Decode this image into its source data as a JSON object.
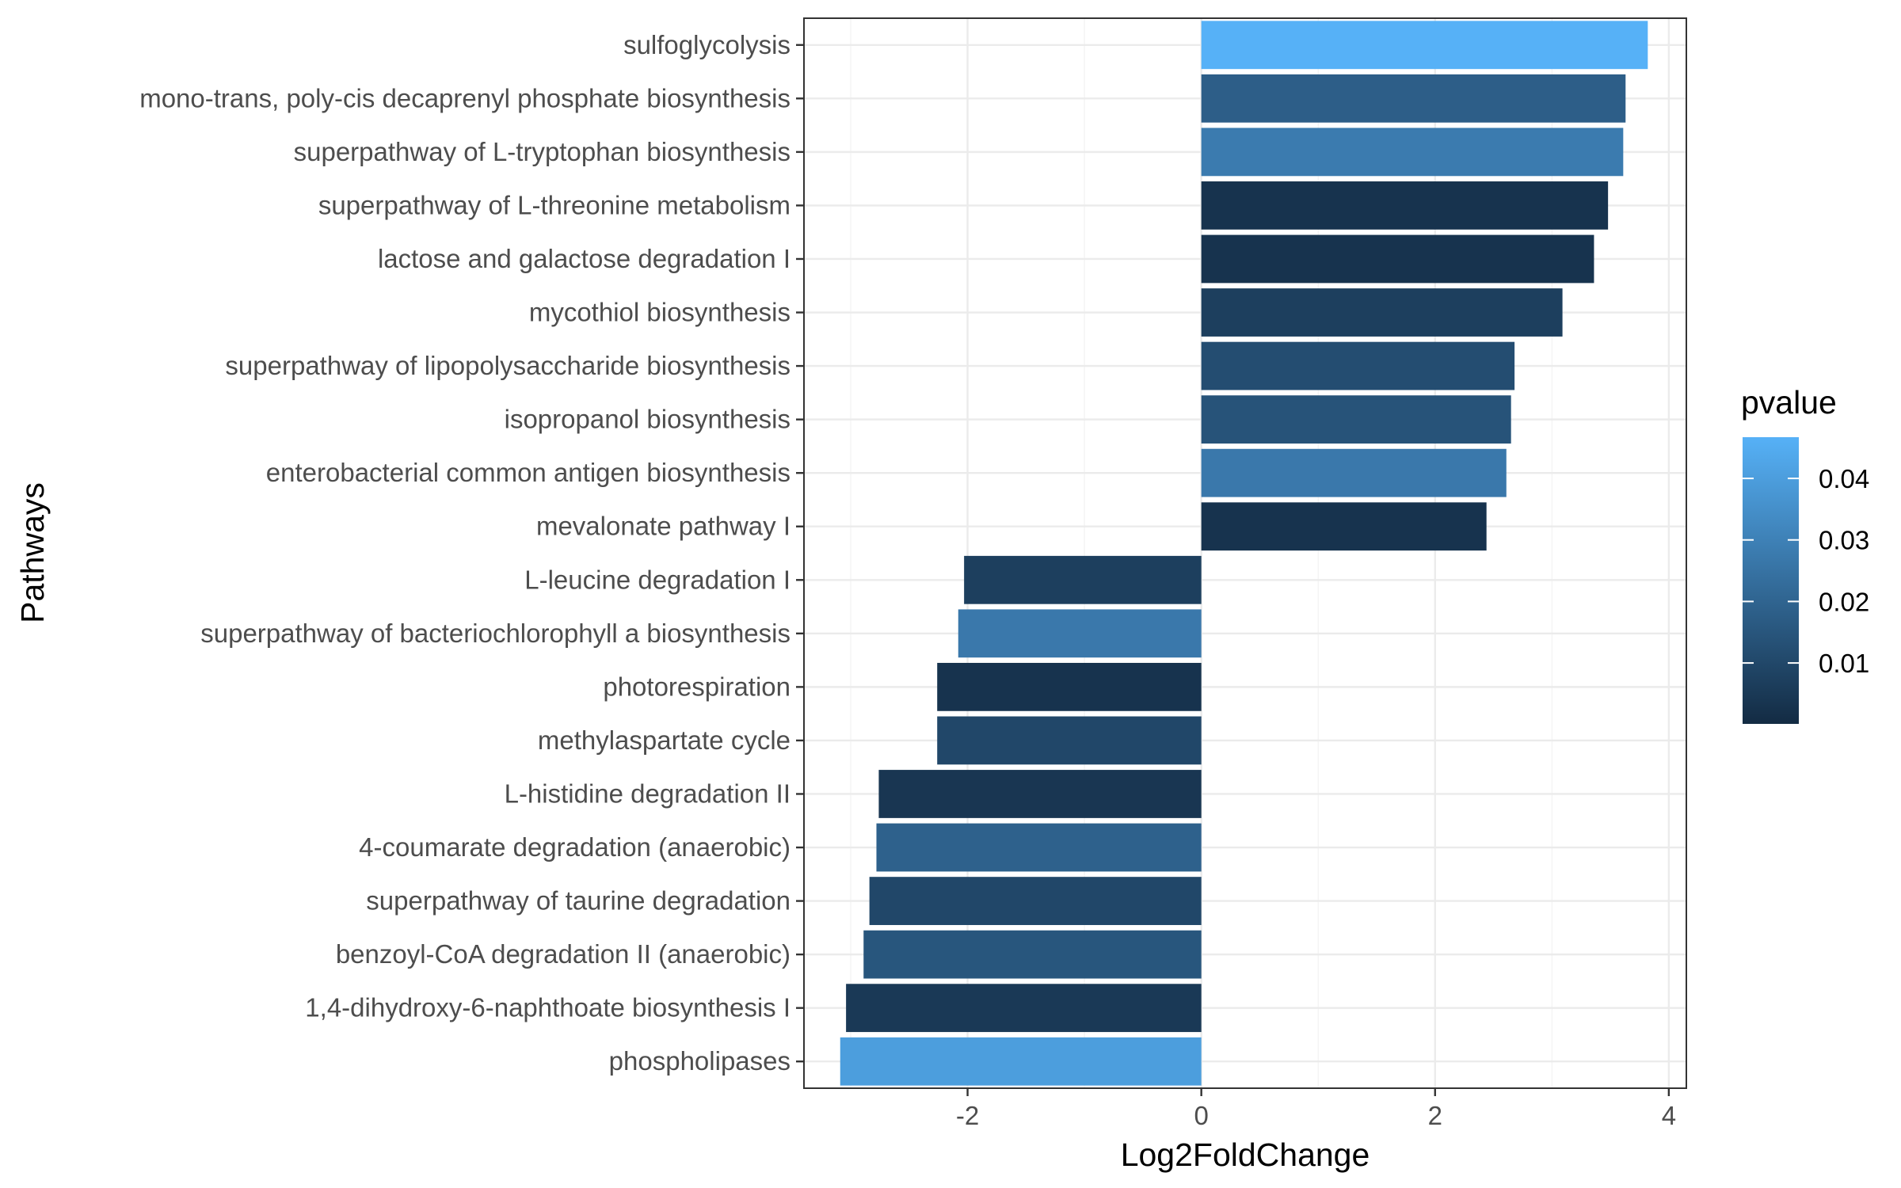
{
  "chart_data": {
    "type": "bar",
    "orientation": "horizontal",
    "xlabel": "Log2FoldChange",
    "ylabel": "Pathways",
    "xlim": [
      -3.4,
      4.15
    ],
    "xticks": [
      -2,
      0,
      2,
      4
    ],
    "xtick_labels": [
      "-2",
      "0",
      "2",
      "4"
    ],
    "grid": true,
    "legend_position": "right",
    "color_scale": {
      "title": "pvalue",
      "low_color": "#132B43",
      "high_color": "#56B1F7",
      "min": 0.0001,
      "max": 0.0467,
      "ticks": [
        0.01,
        0.02,
        0.03,
        0.04
      ],
      "tick_labels": [
        "0.01",
        "0.02",
        "0.03",
        "0.04"
      ]
    },
    "categories": [
      "sulfoglycolysis",
      "mono-trans, poly-cis decaprenyl phosphate biosynthesis",
      "superpathway of L-tryptophan biosynthesis",
      "superpathway of L-threonine metabolism",
      "lactose and galactose degradation I",
      "mycothiol biosynthesis",
      "superpathway of lipopolysaccharide biosynthesis",
      "isopropanol biosynthesis",
      "enterobacterial common antigen biosynthesis",
      "mevalonate pathway I",
      "L-leucine degradation I",
      "superpathway of bacteriochlorophyll a biosynthesis",
      "photorespiration",
      "methylaspartate cycle",
      "L-histidine degradation II",
      "4-coumarate degradation (anaerobic)",
      "superpathway of taurine degradation",
      "benzoyl-CoA degradation II (anaerobic)",
      "1,4-dihydroxy-6-naphthoate biosynthesis I",
      "phospholipases"
    ],
    "values": [
      3.82,
      3.63,
      3.61,
      3.48,
      3.36,
      3.09,
      2.68,
      2.65,
      2.61,
      2.44,
      -2.03,
      -2.08,
      -2.26,
      -2.26,
      -2.76,
      -2.78,
      -2.84,
      -2.89,
      -3.04,
      -3.09
    ],
    "pvalues": [
      0.0467,
      0.018,
      0.028,
      0.003,
      0.003,
      0.007,
      0.012,
      0.014,
      0.027,
      0.003,
      0.007,
      0.027,
      0.003,
      0.01,
      0.004,
      0.019,
      0.01,
      0.015,
      0.005,
      0.04
    ]
  }
}
